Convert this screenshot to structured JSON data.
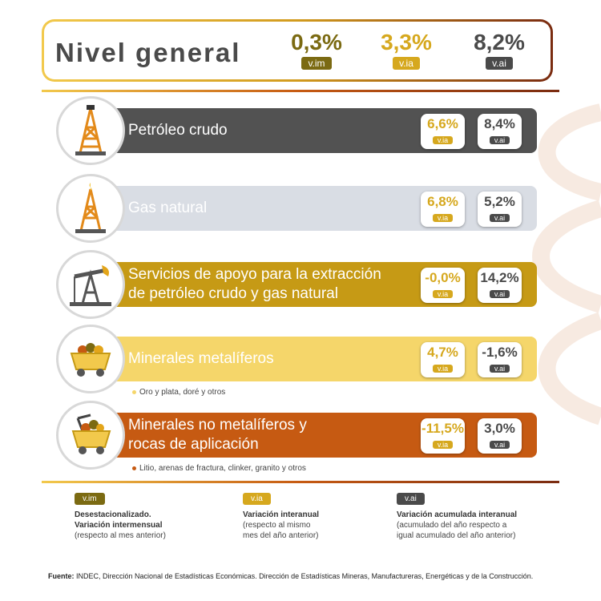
{
  "header": {
    "title": "Nivel general",
    "stats": [
      {
        "value": "0,3%",
        "tag": "v.im",
        "color": "#7b6a12"
      },
      {
        "value": "3,3%",
        "tag": "v.ia",
        "color": "#d6a81e"
      },
      {
        "value": "8,2%",
        "tag": "v.ai",
        "color": "#4a4a4a"
      }
    ]
  },
  "rows": [
    {
      "label_1": "Petróleo crudo",
      "label_2": "",
      "via": "6,6%",
      "vai": "8,4%",
      "via_tag": "v.ia",
      "vai_tag": "v.ai",
      "bar_color": "#525252",
      "text_color": "#ffffff",
      "icon": "oil-derrick-icon"
    },
    {
      "label_1": "Gas natural",
      "label_2": "",
      "via": "6,8%",
      "vai": "5,2%",
      "via_tag": "v.ia",
      "vai_tag": "v.ai",
      "bar_color": "#d9dde4",
      "text_color": "#ffffff",
      "icon": "gas-rig-icon"
    },
    {
      "label_1": "Servicios de apoyo para la extracción",
      "label_2": "de petróleo crudo y gas natural",
      "via": "-0,0%",
      "vai": "14,2%",
      "via_tag": "v.ia",
      "vai_tag": "v.ai",
      "bar_color": "#c69a15",
      "text_color": "#ffffff",
      "icon": "pump-jack-icon"
    },
    {
      "label_1": "Minerales metalíferos",
      "label_2": "",
      "via": "4,7%",
      "vai": "-1,6%",
      "via_tag": "v.ia",
      "vai_tag": "v.ai",
      "bar_color": "#f5d66a",
      "text_color": "#ffffff",
      "icon": "ore-cart-icon",
      "note": "Oro y plata, doré y otros"
    },
    {
      "label_1": "Minerales no metalíferos y",
      "label_2": "rocas de aplicación",
      "via": "-11,5%",
      "vai": "3,0%",
      "via_tag": "v.ia",
      "vai_tag": "v.ai",
      "bar_color": "#c65a12",
      "text_color": "#ffffff",
      "icon": "ore-cart-pick-icon",
      "note": "Litio, arenas de fractura, clinker, granito y otros"
    }
  ],
  "legend": [
    {
      "tag": "v.im",
      "line1": "Desestacionalizado.",
      "line2": "Variación intermensual",
      "line3": "(respecto al mes anterior)",
      "line4": "",
      "color": "#7b6a12"
    },
    {
      "tag": "v.ia",
      "line1": "Variación interanual",
      "line2": "(respecto al mismo",
      "line3": "mes del año anterior)",
      "line4": "",
      "color": "#d6a81e"
    },
    {
      "tag": "v.ai",
      "line1": "Variación acumulada interanual",
      "line2": "(acumulado del año respecto a",
      "line3": "igual acumulado del año anterior)",
      "line4": "",
      "color": "#4a4a4a"
    }
  ],
  "footer": {
    "label": "Fuente:",
    "text": " INDEC, Dirección Nacional de Estadísticas Económicas. Dirección de Estadísticas Mineras, Manufactureras, Energéticas y de la Construcción."
  }
}
